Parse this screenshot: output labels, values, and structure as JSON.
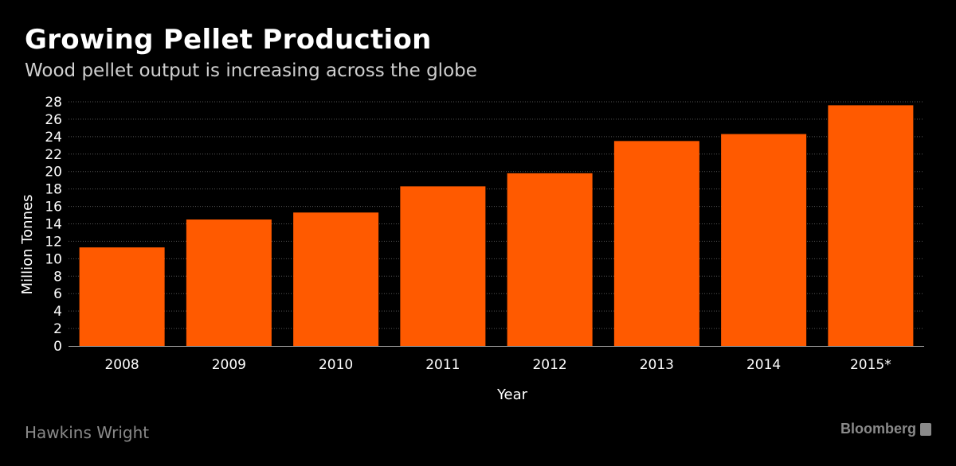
{
  "header": {
    "title": "Growing Pellet Production",
    "subtitle": "Wood pellet output is increasing across the globe"
  },
  "footer": {
    "source": "Hawkins Wright",
    "brand": "Bloomberg"
  },
  "colors": {
    "bar": "#ff5a00",
    "background": "#000000",
    "grid": "#555555"
  },
  "chart_data": {
    "type": "bar",
    "title": "Growing Pellet Production",
    "subtitle": "Wood pellet output is increasing across the globe",
    "xlabel": "Year",
    "ylabel": "Million Tonnes",
    "categories": [
      "2008",
      "2009",
      "2010",
      "2011",
      "2012",
      "2013",
      "2014",
      "2015*"
    ],
    "values": [
      11.3,
      14.5,
      15.3,
      18.3,
      19.8,
      23.5,
      24.3,
      27.6
    ],
    "ylim": [
      0,
      28
    ],
    "yticks": [
      0,
      2,
      4,
      6,
      8,
      10,
      12,
      14,
      16,
      18,
      20,
      22,
      24,
      26,
      28
    ],
    "grid": true,
    "legend": "none"
  }
}
